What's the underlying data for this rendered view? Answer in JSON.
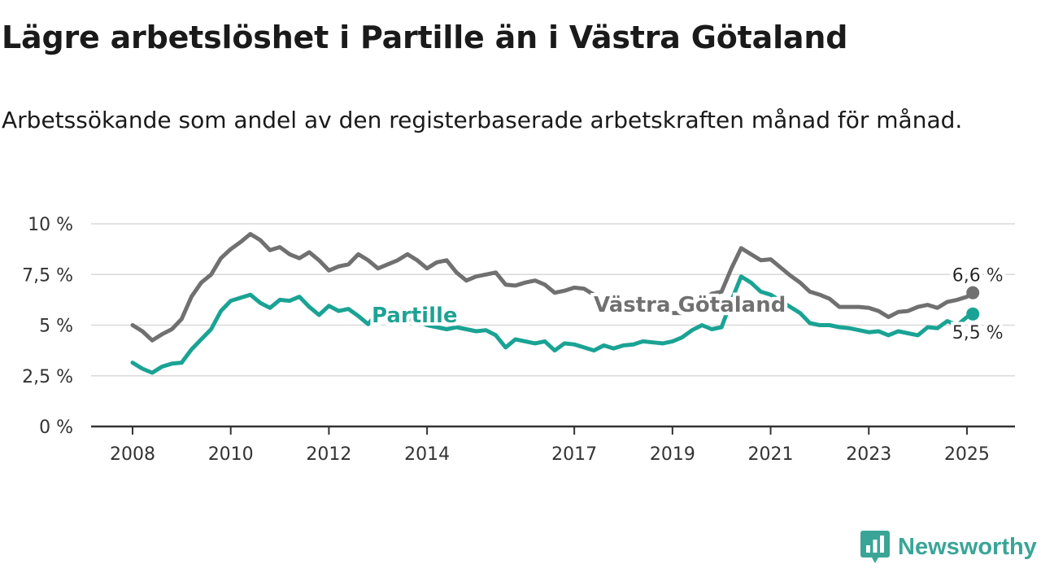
{
  "title": "Lägre arbetslöshet i Partille än i Västra Götaland",
  "subtitle": "Arbetssökande som andel av den registerbaserade arbetskraften månad för månad.",
  "brand": {
    "name": "Newsworthy",
    "icon": "newsworthy-logo-icon"
  },
  "colors": {
    "partille": "#1aa394",
    "vastra_gotaland": "#707070",
    "grid": "#d9d9d9",
    "axis": "#333333"
  },
  "chart_data": {
    "type": "line",
    "x_unit": "year",
    "xlim": [
      2007.5,
      2025.9
    ],
    "ylim": [
      0,
      10
    ],
    "y_ticks": [
      0,
      2.5,
      5,
      7.5,
      10
    ],
    "y_tick_labels": [
      "0 %",
      "2,5 %",
      "5 %",
      "7,5 %",
      "10 %"
    ],
    "x_ticks": [
      2008,
      2010,
      2012,
      2014,
      2017,
      2019,
      2021,
      2023,
      2025
    ],
    "x_tick_labels": [
      "2008",
      "2010",
      "2012",
      "2014",
      "2017",
      "2019",
      "2021",
      "2023",
      "2025"
    ],
    "grid": "horizontal",
    "legend": "inline labels",
    "series": [
      {
        "name": "Västra Götaland",
        "color": "#707070",
        "end_label": "6,6 %",
        "points": [
          [
            2008.0,
            5.0
          ],
          [
            2008.2,
            4.7
          ],
          [
            2008.4,
            4.25
          ],
          [
            2008.6,
            4.55
          ],
          [
            2008.8,
            4.8
          ],
          [
            2009.0,
            5.3
          ],
          [
            2009.2,
            6.4
          ],
          [
            2009.4,
            7.1
          ],
          [
            2009.6,
            7.5
          ],
          [
            2009.8,
            8.3
          ],
          [
            2010.0,
            8.75
          ],
          [
            2010.2,
            9.1
          ],
          [
            2010.4,
            9.5
          ],
          [
            2010.6,
            9.2
          ],
          [
            2010.8,
            8.7
          ],
          [
            2011.0,
            8.85
          ],
          [
            2011.2,
            8.5
          ],
          [
            2011.4,
            8.3
          ],
          [
            2011.6,
            8.6
          ],
          [
            2011.8,
            8.2
          ],
          [
            2012.0,
            7.7
          ],
          [
            2012.2,
            7.9
          ],
          [
            2012.4,
            8.0
          ],
          [
            2012.6,
            8.5
          ],
          [
            2012.8,
            8.2
          ],
          [
            2013.0,
            7.8
          ],
          [
            2013.2,
            8.0
          ],
          [
            2013.4,
            8.2
          ],
          [
            2013.6,
            8.5
          ],
          [
            2013.8,
            8.2
          ],
          [
            2014.0,
            7.8
          ],
          [
            2014.2,
            8.1
          ],
          [
            2014.4,
            8.2
          ],
          [
            2014.6,
            7.6
          ],
          [
            2014.8,
            7.2
          ],
          [
            2015.0,
            7.4
          ],
          [
            2015.2,
            7.5
          ],
          [
            2015.4,
            7.6
          ],
          [
            2015.6,
            7.0
          ],
          [
            2015.8,
            6.95
          ],
          [
            2016.0,
            7.1
          ],
          [
            2016.2,
            7.2
          ],
          [
            2016.4,
            7.0
          ],
          [
            2016.6,
            6.6
          ],
          [
            2016.8,
            6.7
          ],
          [
            2017.0,
            6.85
          ],
          [
            2017.2,
            6.8
          ],
          [
            2017.4,
            6.5
          ],
          [
            2017.6,
            6.3
          ],
          [
            2017.8,
            6.0
          ],
          [
            2018.0,
            5.9
          ],
          [
            2018.2,
            5.75
          ],
          [
            2018.4,
            5.65
          ],
          [
            2018.6,
            5.75
          ],
          [
            2018.8,
            5.7
          ],
          [
            2019.0,
            5.6
          ],
          [
            2019.2,
            5.6
          ],
          [
            2019.4,
            5.9
          ],
          [
            2019.6,
            6.2
          ],
          [
            2019.8,
            6.55
          ],
          [
            2020.0,
            6.65
          ],
          [
            2020.2,
            7.8
          ],
          [
            2020.4,
            8.8
          ],
          [
            2020.6,
            8.5
          ],
          [
            2020.8,
            8.2
          ],
          [
            2021.0,
            8.25
          ],
          [
            2021.2,
            7.85
          ],
          [
            2021.4,
            7.45
          ],
          [
            2021.6,
            7.1
          ],
          [
            2021.8,
            6.65
          ],
          [
            2022.0,
            6.5
          ],
          [
            2022.2,
            6.3
          ],
          [
            2022.4,
            5.9
          ],
          [
            2022.6,
            5.9
          ],
          [
            2022.8,
            5.9
          ],
          [
            2023.0,
            5.85
          ],
          [
            2023.2,
            5.7
          ],
          [
            2023.4,
            5.4
          ],
          [
            2023.6,
            5.65
          ],
          [
            2023.8,
            5.7
          ],
          [
            2024.0,
            5.9
          ],
          [
            2024.2,
            6.0
          ],
          [
            2024.4,
            5.85
          ],
          [
            2024.6,
            6.15
          ],
          [
            2024.8,
            6.25
          ],
          [
            2025.0,
            6.4
          ],
          [
            2025.12,
            6.6
          ]
        ]
      },
      {
        "name": "Partille",
        "color": "#1aa394",
        "end_label": "5,5 %",
        "points": [
          [
            2008.0,
            3.15
          ],
          [
            2008.2,
            2.85
          ],
          [
            2008.4,
            2.65
          ],
          [
            2008.6,
            2.95
          ],
          [
            2008.8,
            3.1
          ],
          [
            2009.0,
            3.15
          ],
          [
            2009.2,
            3.8
          ],
          [
            2009.4,
            4.3
          ],
          [
            2009.6,
            4.8
          ],
          [
            2009.8,
            5.7
          ],
          [
            2010.0,
            6.2
          ],
          [
            2010.2,
            6.35
          ],
          [
            2010.4,
            6.5
          ],
          [
            2010.6,
            6.1
          ],
          [
            2010.8,
            5.85
          ],
          [
            2011.0,
            6.25
          ],
          [
            2011.2,
            6.2
          ],
          [
            2011.4,
            6.4
          ],
          [
            2011.6,
            5.9
          ],
          [
            2011.8,
            5.5
          ],
          [
            2012.0,
            5.95
          ],
          [
            2012.2,
            5.7
          ],
          [
            2012.4,
            5.8
          ],
          [
            2012.6,
            5.45
          ],
          [
            2012.8,
            5.05
          ],
          [
            2013.0,
            5.65
          ],
          [
            2013.2,
            5.55
          ],
          [
            2013.4,
            5.4
          ],
          [
            2013.6,
            5.3
          ],
          [
            2013.8,
            5.2
          ],
          [
            2014.0,
            5.0
          ],
          [
            2014.2,
            4.9
          ],
          [
            2014.4,
            4.8
          ],
          [
            2014.6,
            4.9
          ],
          [
            2014.8,
            4.8
          ],
          [
            2015.0,
            4.7
          ],
          [
            2015.2,
            4.75
          ],
          [
            2015.4,
            4.5
          ],
          [
            2015.6,
            3.9
          ],
          [
            2015.8,
            4.3
          ],
          [
            2016.0,
            4.2
          ],
          [
            2016.2,
            4.1
          ],
          [
            2016.4,
            4.2
          ],
          [
            2016.6,
            3.75
          ],
          [
            2016.8,
            4.1
          ],
          [
            2017.0,
            4.05
          ],
          [
            2017.2,
            3.9
          ],
          [
            2017.4,
            3.75
          ],
          [
            2017.6,
            4.0
          ],
          [
            2017.8,
            3.85
          ],
          [
            2018.0,
            4.0
          ],
          [
            2018.2,
            4.05
          ],
          [
            2018.4,
            4.2
          ],
          [
            2018.6,
            4.15
          ],
          [
            2018.8,
            4.1
          ],
          [
            2019.0,
            4.2
          ],
          [
            2019.2,
            4.4
          ],
          [
            2019.4,
            4.75
          ],
          [
            2019.6,
            5.0
          ],
          [
            2019.8,
            4.8
          ],
          [
            2020.0,
            4.9
          ],
          [
            2020.2,
            6.2
          ],
          [
            2020.4,
            7.4
          ],
          [
            2020.6,
            7.1
          ],
          [
            2020.8,
            6.65
          ],
          [
            2021.0,
            6.5
          ],
          [
            2021.2,
            6.2
          ],
          [
            2021.4,
            5.9
          ],
          [
            2021.6,
            5.6
          ],
          [
            2021.8,
            5.1
          ],
          [
            2022.0,
            5.0
          ],
          [
            2022.2,
            5.0
          ],
          [
            2022.4,
            4.9
          ],
          [
            2022.6,
            4.85
          ],
          [
            2022.8,
            4.75
          ],
          [
            2023.0,
            4.65
          ],
          [
            2023.2,
            4.7
          ],
          [
            2023.4,
            4.5
          ],
          [
            2023.6,
            4.7
          ],
          [
            2023.8,
            4.6
          ],
          [
            2024.0,
            4.5
          ],
          [
            2024.2,
            4.9
          ],
          [
            2024.4,
            4.85
          ],
          [
            2024.6,
            5.2
          ],
          [
            2024.8,
            5.0
          ],
          [
            2025.0,
            5.4
          ],
          [
            2025.12,
            5.55
          ]
        ]
      }
    ]
  }
}
